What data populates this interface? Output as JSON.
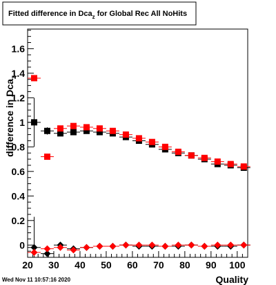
{
  "timestamp": "Wed Nov 11 10:57:16 2020",
  "chart_data": {
    "type": "scatter",
    "title": "Fitted difference in Dca",
    "title_sub": "z",
    "title_suffix": " for Global Rec All NoHits",
    "xlabel": "Quality",
    "ylabel": "difference in Dca",
    "ylabel_sub": "z",
    "xlim": [
      20,
      104
    ],
    "ylim": [
      -0.1,
      1.76
    ],
    "xticks": [
      20,
      30,
      40,
      50,
      60,
      70,
      80,
      90,
      100
    ],
    "yticks": [
      0,
      0.2,
      0.4,
      0.6,
      0.8,
      1,
      1.2,
      1.4,
      1.6
    ],
    "ytick_labels": [
      "0",
      "0.2",
      "0.4",
      "0.6",
      "0.8",
      "1",
      "1.2",
      "1.4",
      "1.6"
    ],
    "legend": "none",
    "grid": false,
    "series": [
      {
        "color": "#000000",
        "marker": "square",
        "x": [
          22.5,
          27.5,
          32.5,
          37.5,
          42.5,
          47.5,
          52.5,
          57.5,
          62.5,
          67.5,
          72.5,
          77.5,
          82.5,
          87.5,
          92.5,
          97.5,
          102.5
        ],
        "y": [
          1.0,
          0.93,
          0.91,
          0.92,
          0.93,
          0.92,
          0.91,
          0.88,
          0.85,
          0.82,
          0.78,
          0.75,
          0.73,
          0.7,
          0.66,
          0.65,
          0.63
        ],
        "yerr": [
          0.2,
          0.03,
          0.02,
          0.02,
          0.015,
          0.015,
          0.015,
          0.015,
          0.015,
          0.015,
          0.015,
          0.015,
          0.015,
          0.015,
          0.015,
          0.015,
          0.015
        ]
      },
      {
        "color": "#ff0000",
        "marker": "square",
        "x": [
          22.5,
          27.5,
          32.5,
          37.5,
          42.5,
          47.5,
          52.5,
          57.5,
          62.5,
          67.5,
          72.5,
          77.5,
          82.5,
          87.5,
          92.5,
          97.5,
          102.5
        ],
        "y": [
          1.36,
          0.72,
          0.95,
          0.97,
          0.96,
          0.95,
          0.93,
          0.9,
          0.87,
          0.84,
          0.8,
          0.76,
          0.73,
          0.71,
          0.68,
          0.66,
          0.64
        ],
        "yerr": [
          0.02,
          0.02,
          0.015,
          0.015,
          0.015,
          0.015,
          0.015,
          0.015,
          0.015,
          0.015,
          0.015,
          0.015,
          0.015,
          0.015,
          0.015,
          0.015,
          0.015
        ]
      },
      {
        "color": "#000000",
        "marker": "diamond",
        "x": [
          22.5,
          27.5,
          32.5,
          37.5,
          42.5,
          47.5,
          52.5,
          57.5,
          62.5,
          67.5,
          72.5,
          77.5,
          82.5,
          87.5,
          92.5,
          97.5,
          102.5
        ],
        "y": [
          -0.02,
          -0.07,
          0.0,
          -0.03,
          -0.02,
          -0.01,
          -0.01,
          0.0,
          -0.01,
          -0.01,
          -0.01,
          -0.01,
          0.0,
          -0.01,
          -0.01,
          -0.01,
          0.0
        ],
        "yerr": [
          0.25,
          0.04,
          0.02,
          0.02,
          0.01,
          0.01,
          0.01,
          0.01,
          0.01,
          0.01,
          0.01,
          0.01,
          0.01,
          0.01,
          0.01,
          0.01,
          0.01
        ]
      },
      {
        "color": "#ff0000",
        "marker": "diamond",
        "x": [
          22.5,
          27.5,
          32.5,
          37.5,
          42.5,
          47.5,
          52.5,
          57.5,
          62.5,
          67.5,
          72.5,
          77.5,
          82.5,
          87.5,
          92.5,
          97.5,
          102.5
        ],
        "y": [
          -0.06,
          -0.03,
          -0.02,
          -0.04,
          -0.02,
          -0.01,
          -0.01,
          0.0,
          0.0,
          0.0,
          -0.01,
          0.0,
          0.0,
          -0.01,
          0.0,
          0.0,
          0.0
        ],
        "yerr": [
          0.03,
          0.02,
          0.015,
          0.015,
          0.01,
          0.01,
          0.01,
          0.01,
          0.01,
          0.01,
          0.01,
          0.01,
          0.01,
          0.01,
          0.01,
          0.01,
          0.01
        ]
      }
    ]
  }
}
